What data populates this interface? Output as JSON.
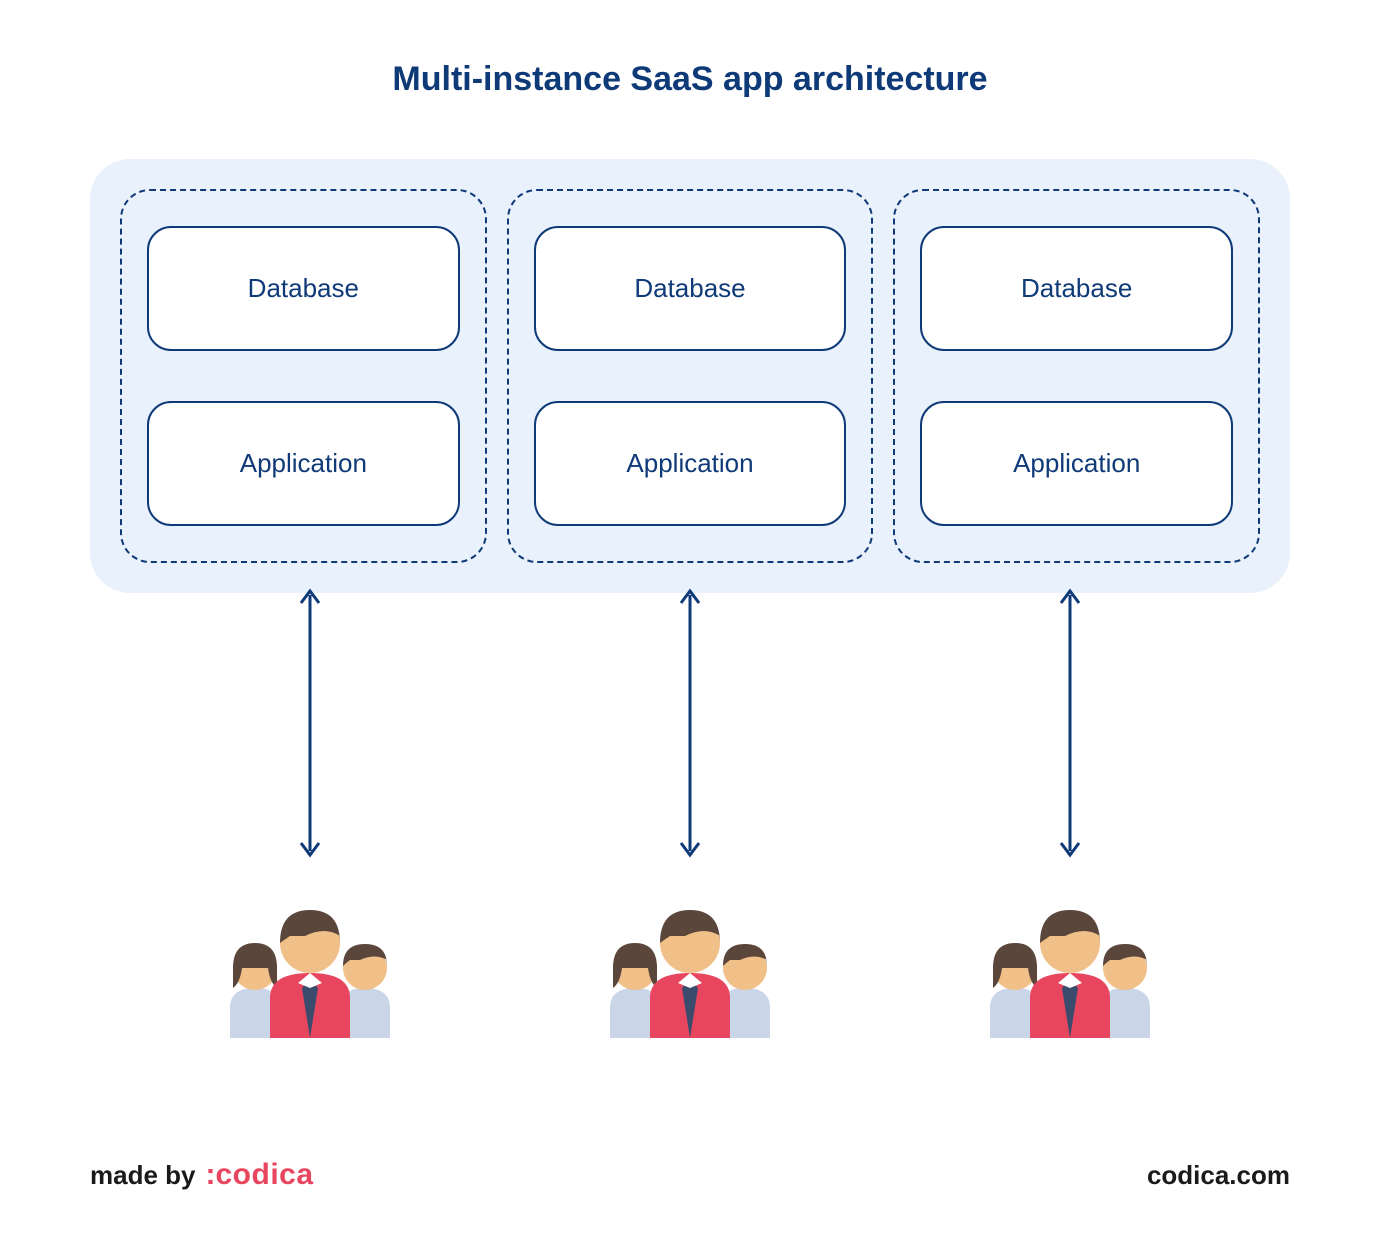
{
  "title": {
    "text": "Multi-instance SaaS app architecture",
    "fontsize": 34,
    "color": "#0f3a78"
  },
  "container": {
    "background_color": "#e9f1fd",
    "border_radius": 40
  },
  "instances": [
    {
      "database_label": "Database",
      "application_label": "Application"
    },
    {
      "database_label": "Database",
      "application_label": "Application"
    },
    {
      "database_label": "Database",
      "application_label": "Application"
    }
  ],
  "instance_style": {
    "dashed_border_color": "#0f3a78",
    "box_border_color": "#0f3a78",
    "box_background": "#ffffff",
    "box_text_color": "#0f3a78",
    "box_fontsize": 26,
    "box_border_radius": 24
  },
  "arrow": {
    "color": "#0f3a78",
    "length": 280,
    "stroke_width": 3
  },
  "user_icon": {
    "skin_color": "#f0c088",
    "hair_color": "#5a463a",
    "shirt_main": "#e8455f",
    "shirt_side": "#cbd5e8",
    "tie_color": "#3a4b6b"
  },
  "footer": {
    "made_by_label": "made by",
    "made_by_color": "#1a1a1a",
    "made_by_fontsize": 26,
    "brand_colon": ":",
    "brand_name": "codica",
    "brand_color": "#e8455f",
    "brand_fontsize": 30,
    "site_text": "codica.com",
    "site_color": "#1a1a1a",
    "site_fontsize": 26
  }
}
